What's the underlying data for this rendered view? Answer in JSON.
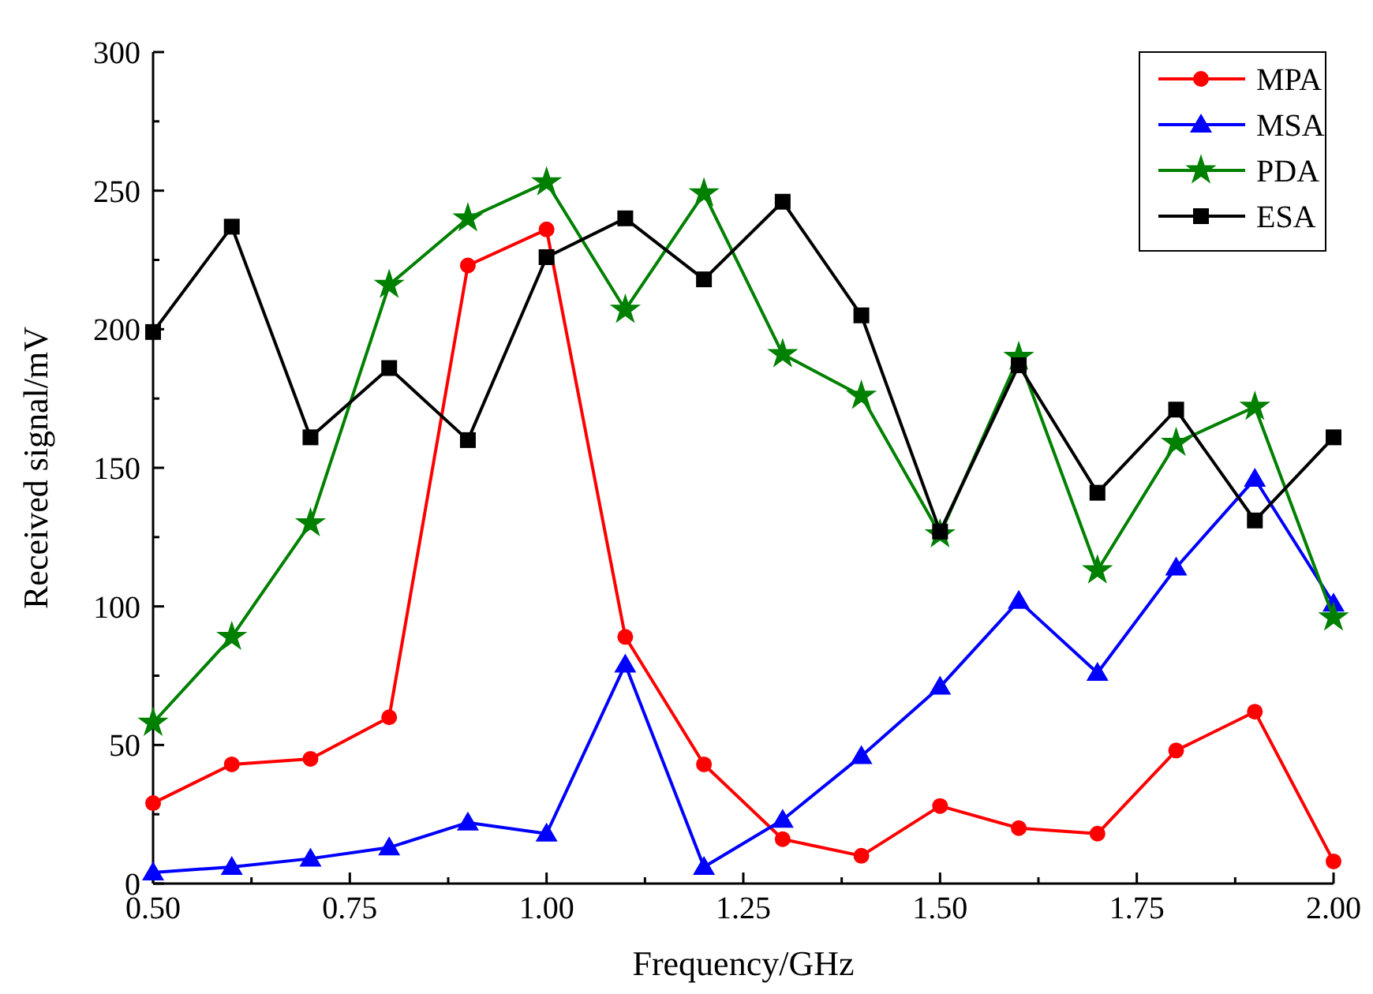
{
  "chart_data": {
    "type": "line",
    "xlabel": "Frequency/GHz",
    "ylabel": "Received signal/mV",
    "x": [
      0.5,
      0.6,
      0.7,
      0.8,
      0.9,
      1.0,
      1.1,
      1.2,
      1.3,
      1.4,
      1.5,
      1.6,
      1.7,
      1.8,
      1.9,
      2.0
    ],
    "series": [
      {
        "name": "MPA",
        "color": "#ff0000",
        "marker": "circle",
        "values": [
          29,
          43,
          45,
          60,
          223,
          236,
          89,
          43,
          16,
          10,
          28,
          20,
          18,
          48,
          62,
          8
        ]
      },
      {
        "name": "MSA",
        "color": "#0000ff",
        "marker": "triangle",
        "values": [
          4,
          6,
          9,
          13,
          22,
          18,
          79,
          6,
          23,
          46,
          71,
          102,
          76,
          114,
          146,
          101
        ]
      },
      {
        "name": "PDA",
        "color": "#008000",
        "marker": "star",
        "values": [
          58,
          89,
          130,
          216,
          240,
          253,
          207,
          249,
          191,
          176,
          126,
          190,
          113,
          159,
          172,
          96
        ]
      },
      {
        "name": "ESA",
        "color": "#000000",
        "marker": "square",
        "values": [
          199,
          237,
          161,
          186,
          160,
          226,
          240,
          218,
          246,
          205,
          127,
          187,
          141,
          171,
          131,
          161
        ]
      }
    ],
    "xlim": [
      0.5,
      2.0
    ],
    "xticks": [
      {
        "value": 0.5,
        "label": "0.50"
      },
      {
        "value": 0.625,
        "label": null
      },
      {
        "value": 0.75,
        "label": "0.75"
      },
      {
        "value": 0.875,
        "label": null
      },
      {
        "value": 1.0,
        "label": "1.00"
      },
      {
        "value": 1.125,
        "label": null
      },
      {
        "value": 1.25,
        "label": "1.25"
      },
      {
        "value": 1.375,
        "label": null
      },
      {
        "value": 1.5,
        "label": "1.50"
      },
      {
        "value": 1.625,
        "label": null
      },
      {
        "value": 1.75,
        "label": "1.75"
      },
      {
        "value": 1.875,
        "label": null
      },
      {
        "value": 2.0,
        "label": "2.00"
      }
    ],
    "ylim": [
      0,
      300
    ],
    "yticks": [
      0,
      {
        "value": 25,
        "label": null
      },
      50,
      {
        "value": 75,
        "label": null
      },
      100,
      {
        "value": 125,
        "label": null
      },
      150,
      {
        "value": 175,
        "label": null
      },
      200,
      {
        "value": 225,
        "label": null
      },
      250,
      {
        "value": 275,
        "label": null
      },
      300
    ],
    "grid": false,
    "legend": "top right",
    "line_style": "solid"
  }
}
